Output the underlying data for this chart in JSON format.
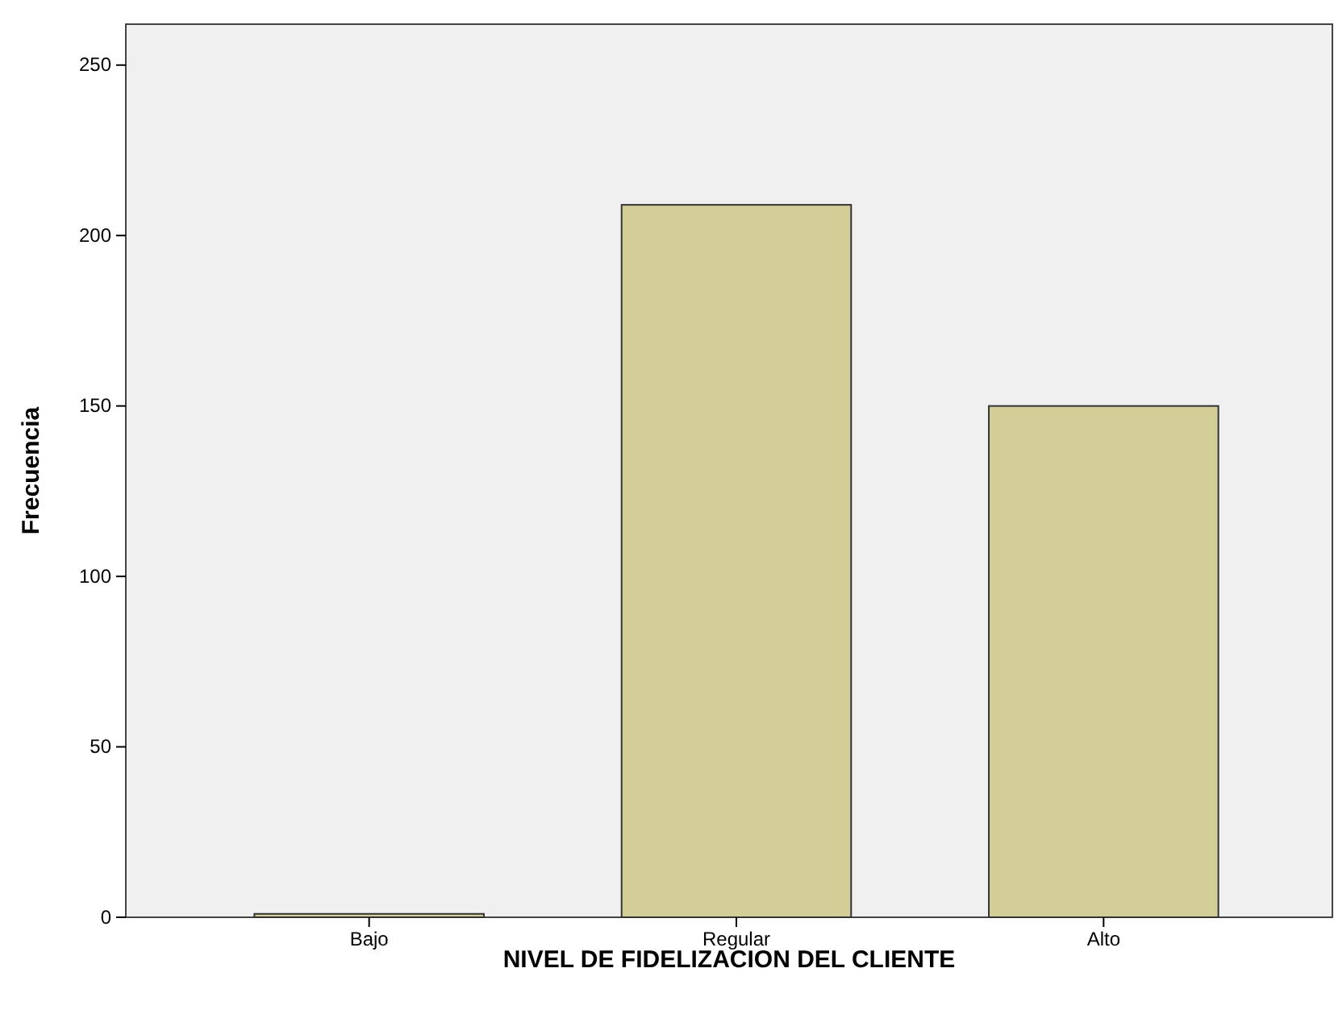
{
  "chart_data": {
    "type": "bar",
    "xlabel": "NIVEL DE FIDELIZACION DEL CLIENTE",
    "ylabel": "Frecuencia",
    "categories": [
      "Bajo",
      "Regular",
      "Alto"
    ],
    "values": [
      1,
      209,
      150
    ],
    "color": "#d3ce97",
    "ylim": [
      0,
      262
    ],
    "yticks": [
      0,
      50,
      100,
      150,
      200,
      250
    ],
    "grid": false
  }
}
